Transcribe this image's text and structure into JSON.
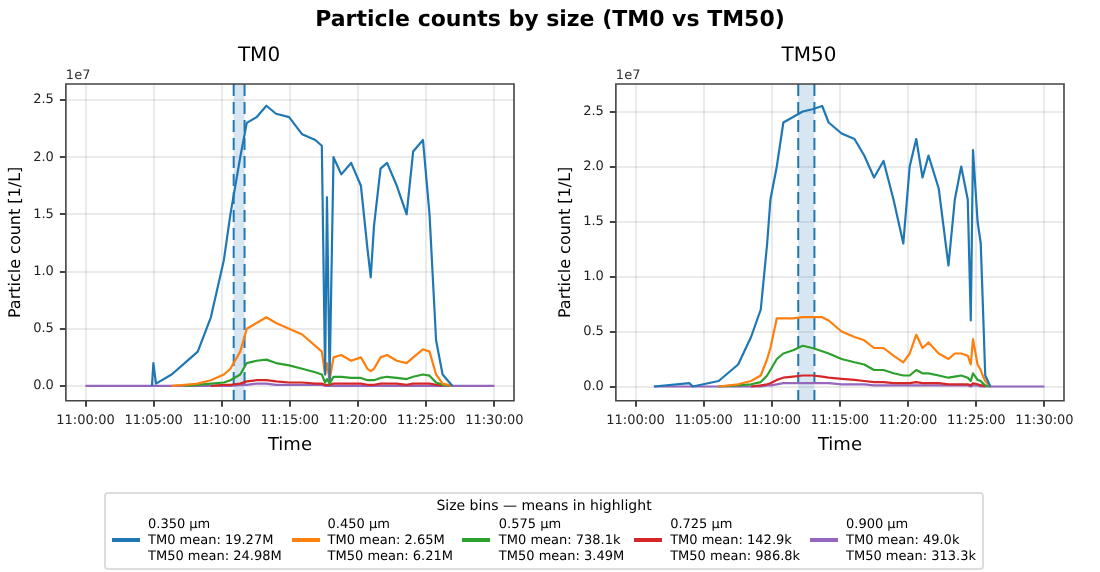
{
  "chart_data": [
    {
      "type": "line",
      "title": "Particle counts by size (TM0 vs TM50)",
      "subtitle": "TM0",
      "xlabel": "Time",
      "ylabel": "Particle count [1/L]",
      "annotations": [
        "1e7"
      ],
      "legend_title": "Size bins — means in highlight",
      "legend": "bottom",
      "grid": true,
      "marker": "none",
      "line_style": "solid",
      "xlim": [
        10.976,
        11.524
      ],
      "xticks": [
        {
          "value": 11,
          "label": "11:00:00"
        },
        {
          "value": 11.0833,
          "label": "11:05:00"
        },
        {
          "value": 11.1667,
          "label": "11:10:00"
        },
        {
          "value": 11.25,
          "label": "11:15:00"
        },
        {
          "value": 11.3333,
          "label": "11:20:00"
        },
        {
          "value": 11.4167,
          "label": "11:25:00"
        },
        {
          "value": 11.5,
          "label": "11:30:00"
        }
      ],
      "ylim": [
        -0.13,
        2.64
      ],
      "yticks": [
        {
          "value": 0,
          "label": "0.0"
        },
        0.5,
        {
          "value": 1,
          "label": "1.0"
        },
        1.5,
        {
          "value": 2,
          "label": "2.0"
        },
        2.5
      ],
      "bands": [
        {
          "axis": "x",
          "from": 11.1812,
          "to": 11.1945,
          "color": "#1f77b4"
        }
      ],
      "ref_lines": [
        {
          "axis": "x",
          "value": 11.1812,
          "color": "#1f77b4",
          "line_style": "dashed"
        },
        {
          "axis": "x",
          "value": 11.1945,
          "color": "#1f77b4",
          "line_style": "dashed"
        }
      ],
      "x": [
        11,
        11.0813,
        11.083,
        11.0862,
        11.1053,
        11.1213,
        11.1373,
        11.1533,
        11.1692,
        11.1772,
        11.1892,
        11.1972,
        11.2092,
        11.2212,
        11.233,
        11.249,
        11.265,
        11.281,
        11.289,
        11.293,
        11.2953,
        11.2985,
        11.3033,
        11.3128,
        11.3248,
        11.3368,
        11.3448,
        11.3488,
        11.3528,
        11.3608,
        11.3688,
        11.3807,
        11.3927,
        11.4007,
        11.4127,
        11.4207,
        11.4287,
        11.4367,
        11.4487,
        11.5
      ],
      "series": [
        {
          "name": "0.350 µm\nTM0 mean: 19.27M\nTM50 mean: 24.98M",
          "color": "#1f77b4",
          "values": [
            null,
            0,
            0.2,
            0.02,
            0.1,
            0.2,
            0.3,
            0.6,
            1.1,
            1.5,
            2.0,
            2.3,
            2.35,
            2.45,
            2.38,
            2.35,
            2.2,
            2.15,
            2.1,
            0.1,
            1.65,
            0.05,
            2.0,
            1.85,
            1.95,
            1.75,
            1.2,
            0.95,
            1.4,
            1.9,
            1.95,
            1.75,
            1.5,
            2.05,
            2.15,
            1.5,
            0.4,
            0.1,
            0,
            null
          ]
        },
        {
          "name": "0.450 µm\nTM0 mean: 2.65M\nTM50 mean: 6.21M",
          "color": "#ff7f0e",
          "values": [
            null,
            null,
            null,
            null,
            0,
            0.01,
            0.02,
            0.05,
            0.1,
            0.15,
            0.3,
            0.5,
            0.55,
            0.6,
            0.55,
            0.5,
            0.45,
            0.35,
            0.3,
            0.1,
            0.2,
            0.05,
            0.25,
            0.27,
            0.22,
            0.25,
            0.15,
            0.13,
            0.15,
            0.25,
            0.27,
            0.22,
            0.2,
            0.25,
            0.32,
            0.3,
            0.1,
            0.02,
            0,
            null
          ]
        },
        {
          "name": "0.575 µm\nTM0 mean: 738.1k\nTM50 mean: 3.49M",
          "color": "#2ca02c",
          "values": [
            null,
            null,
            null,
            null,
            null,
            0,
            0.01,
            0.02,
            0.03,
            0.05,
            0.1,
            0.2,
            0.22,
            0.23,
            0.2,
            0.18,
            0.15,
            0.12,
            0.1,
            0.03,
            0.06,
            0.02,
            0.08,
            0.08,
            0.07,
            0.07,
            0.05,
            0.05,
            0.05,
            0.07,
            0.08,
            0.07,
            0.06,
            0.08,
            0.1,
            0.09,
            0.03,
            0.01,
            0,
            null
          ]
        },
        {
          "name": "0.725 µm\nTM0 mean: 142.9k\nTM50 mean: 986.8k",
          "color": "#d62728",
          "values": [
            null,
            null,
            null,
            null,
            null,
            null,
            null,
            0,
            0.01,
            0.01,
            0.02,
            0.04,
            0.05,
            0.05,
            0.04,
            0.03,
            0.03,
            0.02,
            0.02,
            0.01,
            0.01,
            0.01,
            0.02,
            0.02,
            0.02,
            0.02,
            0.01,
            0.01,
            0.01,
            0.02,
            0.02,
            0.02,
            0.01,
            0.02,
            0.02,
            0.02,
            0.01,
            0,
            null,
            null
          ]
        },
        {
          "name": "0.900 µm\nTM0 mean: 49.0k\nTM50 mean: 313.3k",
          "color": "#9467bd",
          "values": [
            0,
            0,
            0,
            0,
            0,
            0,
            0,
            0,
            0,
            0,
            0.01,
            0.01,
            0.02,
            0.02,
            0.01,
            0.01,
            0.01,
            0.01,
            0.01,
            0,
            0,
            0,
            0,
            0,
            0,
            0,
            0,
            0,
            0,
            0,
            0,
            0,
            0,
            0,
            0,
            0,
            0,
            0,
            0,
            0
          ]
        }
      ]
    },
    {
      "type": "line",
      "subtitle": "TM50",
      "xlabel": "Time",
      "ylabel": "Particle count [1/L]",
      "annotations": [
        "1e7"
      ],
      "grid": true,
      "marker": "none",
      "line_style": "solid",
      "xlim": [
        10.976,
        11.524
      ],
      "xticks": [
        {
          "value": 11,
          "label": "11:00:00"
        },
        {
          "value": 11.0833,
          "label": "11:05:00"
        },
        {
          "value": 11.1667,
          "label": "11:10:00"
        },
        {
          "value": 11.25,
          "label": "11:15:00"
        },
        {
          "value": 11.3333,
          "label": "11:20:00"
        },
        {
          "value": 11.4167,
          "label": "11:25:00"
        },
        {
          "value": 11.5,
          "label": "11:30:00"
        }
      ],
      "ylim": [
        -0.13,
        2.75
      ],
      "yticks": [
        {
          "value": 0,
          "label": "0.0"
        },
        0.5,
        {
          "value": 1,
          "label": "1.0"
        },
        1.5,
        {
          "value": 2,
          "label": "2.0"
        },
        2.5
      ],
      "bands": [
        {
          "axis": "x",
          "from": 11.199,
          "to": 11.2188,
          "color": "#1f77b4"
        }
      ],
      "ref_lines": [
        {
          "axis": "x",
          "value": 11.199,
          "color": "#1f77b4",
          "line_style": "dashed"
        },
        {
          "axis": "x",
          "value": 11.2188,
          "color": "#1f77b4",
          "line_style": "dashed"
        }
      ],
      "x": [
        11.0225,
        11.066,
        11.07,
        11.1017,
        11.1255,
        11.1413,
        11.1532,
        11.161,
        11.165,
        11.1728,
        11.1808,
        11.1927,
        11.2045,
        11.2163,
        11.2283,
        11.2362,
        11.252,
        11.2678,
        11.2797,
        11.2917,
        11.3033,
        11.3155,
        11.3275,
        11.3353,
        11.3433,
        11.351,
        11.3583,
        11.3708,
        11.3827,
        11.3905,
        11.3983,
        11.4063,
        11.41,
        11.4127,
        11.4183,
        11.4222,
        11.4245,
        11.4277,
        11.434,
        11.5
      ],
      "series": [
        {
          "color": "#1f77b4",
          "values": [
            0,
            0.03,
            0,
            0.05,
            0.2,
            0.45,
            0.7,
            1.3,
            1.7,
            2.0,
            2.4,
            2.45,
            2.5,
            2.52,
            2.55,
            2.4,
            2.3,
            2.25,
            2.1,
            1.9,
            2.05,
            1.7,
            1.3,
            2.0,
            2.25,
            1.9,
            2.1,
            1.8,
            1.1,
            1.7,
            2.0,
            1.7,
            0.6,
            2.15,
            1.5,
            1.3,
            0.8,
            0.1,
            0,
            null
          ]
        },
        {
          "color": "#ff7f0e",
          "values": [
            null,
            null,
            null,
            0,
            0.02,
            0.05,
            0.1,
            0.25,
            0.35,
            0.62,
            0.62,
            0.62,
            0.63,
            0.63,
            0.63,
            0.6,
            0.5,
            0.45,
            0.42,
            0.35,
            0.35,
            0.28,
            0.22,
            0.3,
            0.47,
            0.35,
            0.4,
            0.3,
            0.25,
            0.3,
            0.3,
            0.28,
            0.2,
            0.43,
            0.2,
            0.15,
            0.1,
            0.05,
            0,
            null
          ]
        },
        {
          "color": "#2ca02c",
          "values": [
            null,
            null,
            null,
            0,
            0.01,
            0.02,
            0.04,
            0.1,
            0.15,
            0.25,
            0.3,
            0.33,
            0.37,
            0.35,
            0.32,
            0.3,
            0.25,
            0.22,
            0.2,
            0.15,
            0.15,
            0.12,
            0.1,
            0.1,
            0.15,
            0.12,
            0.12,
            0.1,
            0.08,
            0.09,
            0.1,
            0.08,
            0.05,
            0.12,
            0.06,
            0.05,
            0.03,
            0.01,
            0,
            null
          ]
        },
        {
          "color": "#d62728",
          "values": [
            null,
            null,
            null,
            null,
            null,
            0,
            0.01,
            0.02,
            0.03,
            0.06,
            0.08,
            0.09,
            0.1,
            0.1,
            0.09,
            0.08,
            0.07,
            0.06,
            0.05,
            0.04,
            0.04,
            0.03,
            0.03,
            0.03,
            0.04,
            0.03,
            0.03,
            0.03,
            0.02,
            0.02,
            0.02,
            0.02,
            0.01,
            0.03,
            0.02,
            0.01,
            0.01,
            0,
            null,
            null
          ]
        },
        {
          "color": "#9467bd",
          "values": [
            0,
            0,
            0,
            0,
            0,
            0,
            0,
            0.01,
            0.01,
            0.02,
            0.03,
            0.03,
            0.03,
            0.03,
            0.03,
            0.03,
            0.02,
            0.02,
            0.02,
            0.01,
            0.01,
            0.01,
            0.01,
            0.01,
            0.01,
            0.01,
            0.01,
            0.01,
            0.01,
            0.01,
            0.01,
            0.01,
            0,
            0.01,
            0.01,
            0,
            0,
            0,
            0,
            0
          ]
        }
      ]
    }
  ]
}
